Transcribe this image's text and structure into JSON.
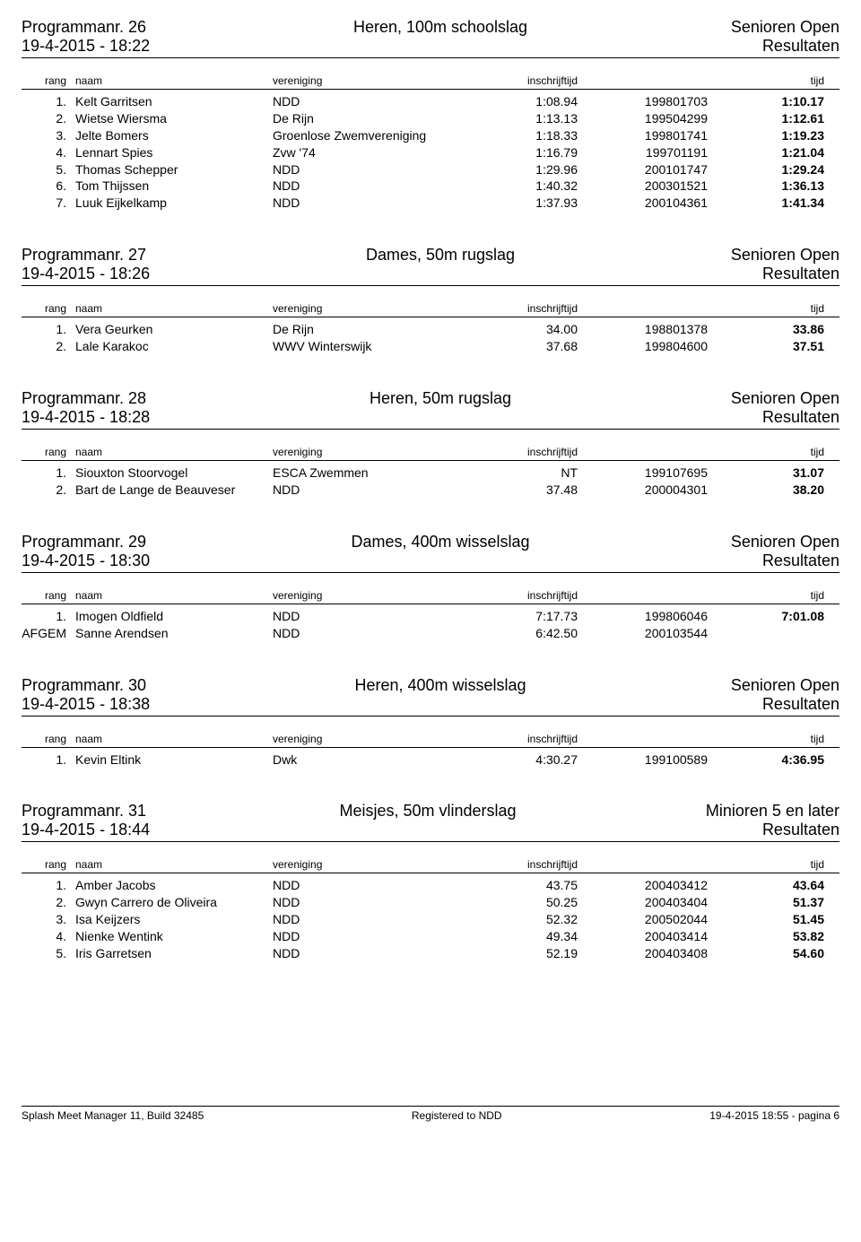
{
  "footer": {
    "left": "Splash Meet Manager 11, Build 32485",
    "center": "Registered to NDD",
    "right": "19-4-2015 18:55 - pagina 6"
  },
  "columns": {
    "rang": "rang",
    "naam": "naam",
    "vereniging": "vereniging",
    "inschrijftijd": "inschrijftijd",
    "tijd": "tijd"
  },
  "events": [
    {
      "prog": "Programmanr. 26",
      "datetime": "19-4-2015 - 18:22",
      "title": "Heren, 100m schoolslag",
      "cat": "Senioren Open",
      "sub": "Resultaten",
      "rows": [
        {
          "rang": "1.",
          "naam": "Kelt Garritsen",
          "ver": "NDD",
          "ins": "1:08.94",
          "id": "199801703",
          "tijd": "1:10.17"
        },
        {
          "rang": "2.",
          "naam": "Wietse Wiersma",
          "ver": "De Rijn",
          "ins": "1:13.13",
          "id": "199504299",
          "tijd": "1:12.61"
        },
        {
          "rang": "3.",
          "naam": "Jelte Bomers",
          "ver": "Groenlose Zwemvereniging",
          "ins": "1:18.33",
          "id": "199801741",
          "tijd": "1:19.23"
        },
        {
          "rang": "4.",
          "naam": "Lennart Spies",
          "ver": "Zvw '74",
          "ins": "1:16.79",
          "id": "199701191",
          "tijd": "1:21.04"
        },
        {
          "rang": "5.",
          "naam": "Thomas Schepper",
          "ver": "NDD",
          "ins": "1:29.96",
          "id": "200101747",
          "tijd": "1:29.24"
        },
        {
          "rang": "6.",
          "naam": "Tom Thijssen",
          "ver": "NDD",
          "ins": "1:40.32",
          "id": "200301521",
          "tijd": "1:36.13"
        },
        {
          "rang": "7.",
          "naam": "Luuk Eijkelkamp",
          "ver": "NDD",
          "ins": "1:37.93",
          "id": "200104361",
          "tijd": "1:41.34"
        }
      ]
    },
    {
      "prog": "Programmanr. 27",
      "datetime": "19-4-2015 - 18:26",
      "title": "Dames, 50m rugslag",
      "cat": "Senioren Open",
      "sub": "Resultaten",
      "rows": [
        {
          "rang": "1.",
          "naam": "Vera Geurken",
          "ver": "De Rijn",
          "ins": "34.00",
          "id": "198801378",
          "tijd": "33.86"
        },
        {
          "rang": "2.",
          "naam": "Lale Karakoc",
          "ver": "WWV Winterswijk",
          "ins": "37.68",
          "id": "199804600",
          "tijd": "37.51"
        }
      ]
    },
    {
      "prog": "Programmanr. 28",
      "datetime": "19-4-2015 - 18:28",
      "title": "Heren, 50m rugslag",
      "cat": "Senioren Open",
      "sub": "Resultaten",
      "rows": [
        {
          "rang": "1.",
          "naam": "Siouxton Stoorvogel",
          "ver": "ESCA Zwemmen",
          "ins": "NT",
          "id": "199107695",
          "tijd": "31.07"
        },
        {
          "rang": "2.",
          "naam": "Bart de Lange de Beauveser",
          "ver": "NDD",
          "ins": "37.48",
          "id": "200004301",
          "tijd": "38.20"
        }
      ]
    },
    {
      "prog": "Programmanr. 29",
      "datetime": "19-4-2015 - 18:30",
      "title": "Dames, 400m wisselslag",
      "cat": "Senioren Open",
      "sub": "Resultaten",
      "rows": [
        {
          "rang": "1.",
          "naam": "Imogen Oldfield",
          "ver": "NDD",
          "ins": "7:17.73",
          "id": "199806046",
          "tijd": "7:01.08"
        },
        {
          "rang": "AFGEM",
          "naam": "Sanne Arendsen",
          "ver": "NDD",
          "ins": "6:42.50",
          "id": "200103544",
          "tijd": ""
        }
      ]
    },
    {
      "prog": "Programmanr. 30",
      "datetime": "19-4-2015 - 18:38",
      "title": "Heren, 400m wisselslag",
      "cat": "Senioren Open",
      "sub": "Resultaten",
      "rows": [
        {
          "rang": "1.",
          "naam": "Kevin Eltink",
          "ver": "Dwk",
          "ins": "4:30.27",
          "id": "199100589",
          "tijd": "4:36.95"
        }
      ]
    },
    {
      "prog": "Programmanr. 31",
      "datetime": "19-4-2015 - 18:44",
      "title": "Meisjes, 50m vlinderslag",
      "cat": "Minioren 5 en later",
      "sub": "Resultaten",
      "rows": [
        {
          "rang": "1.",
          "naam": "Amber Jacobs",
          "ver": "NDD",
          "ins": "43.75",
          "id": "200403412",
          "tijd": "43.64"
        },
        {
          "rang": "2.",
          "naam": "Gwyn Carrero de Oliveira",
          "ver": "NDD",
          "ins": "50.25",
          "id": "200403404",
          "tijd": "51.37"
        },
        {
          "rang": "3.",
          "naam": "Isa Keijzers",
          "ver": "NDD",
          "ins": "52.32",
          "id": "200502044",
          "tijd": "51.45"
        },
        {
          "rang": "4.",
          "naam": "Nienke Wentink",
          "ver": "NDD",
          "ins": "49.34",
          "id": "200403414",
          "tijd": "53.82"
        },
        {
          "rang": "5.",
          "naam": "Iris Garretsen",
          "ver": "NDD",
          "ins": "52.19",
          "id": "200403408",
          "tijd": "54.60"
        }
      ]
    }
  ]
}
